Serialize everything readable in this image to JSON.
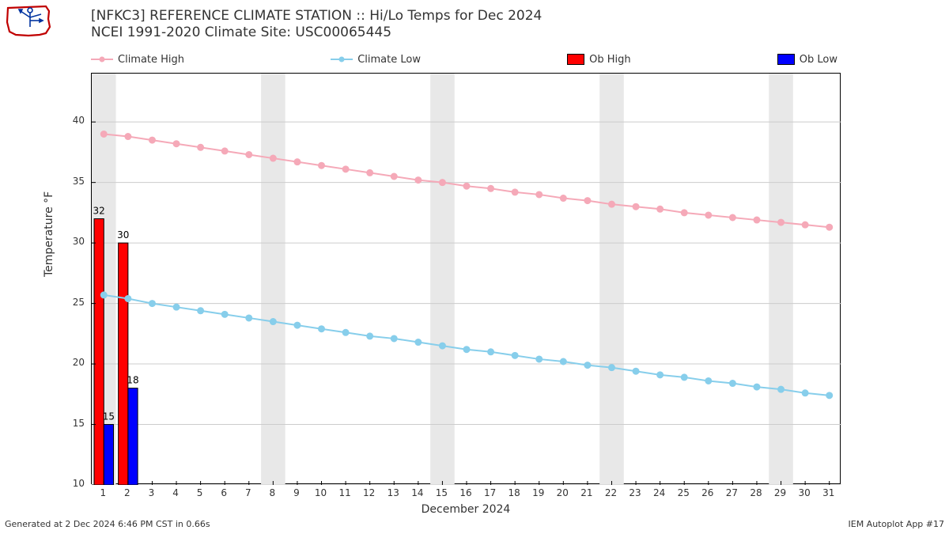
{
  "title_line1": "[NFKC3] REFERENCE CLIMATE STATION :: Hi/Lo Temps for Dec 2024",
  "title_line2": "NCEI 1991-2020 Climate Site: USC00065445",
  "legend": {
    "climate_high": "Climate High",
    "climate_low": "Climate Low",
    "ob_high": "Ob High",
    "ob_low": "Ob Low"
  },
  "xlabel": "December 2024",
  "ylabel": "Temperature °F",
  "footer_left": "Generated at 2 Dec 2024 6:46 PM CST in 0.66s",
  "footer_right": "IEM Autoplot App #17",
  "chart": {
    "type": "line+bar",
    "background_color": "#ffffff",
    "grid_color": "#cccccc",
    "weekend_band_color": "#e8e8e8",
    "border_color": "#000000",
    "xlim": [
      0.5,
      31.5
    ],
    "ylim": [
      10,
      44
    ],
    "yticks": [
      10,
      15,
      20,
      25,
      30,
      35,
      40
    ],
    "xticks": [
      1,
      2,
      3,
      4,
      5,
      6,
      7,
      8,
      9,
      10,
      11,
      12,
      13,
      14,
      15,
      16,
      17,
      18,
      19,
      20,
      21,
      22,
      23,
      24,
      25,
      26,
      27,
      28,
      29,
      30,
      31
    ],
    "weekend_bands": [
      [
        0.5,
        1.5
      ],
      [
        7.5,
        8.5
      ],
      [
        14.5,
        15.5
      ],
      [
        21.5,
        22.5
      ],
      [
        28.5,
        29.5
      ]
    ],
    "climate_high": {
      "color": "#f5a9b8",
      "marker_color": "#f5a9b8",
      "line_width": 2,
      "marker_radius": 4,
      "values": [
        39.0,
        38.8,
        38.5,
        38.2,
        37.9,
        37.6,
        37.3,
        37.0,
        36.7,
        36.4,
        36.1,
        35.8,
        35.5,
        35.2,
        35.0,
        34.7,
        34.5,
        34.2,
        34.0,
        33.7,
        33.5,
        33.2,
        33.0,
        32.8,
        32.5,
        32.3,
        32.1,
        31.9,
        31.7,
        31.5,
        31.3
      ]
    },
    "climate_low": {
      "color": "#87ceeb",
      "marker_color": "#87ceeb",
      "line_width": 2,
      "marker_radius": 4,
      "values": [
        25.7,
        25.4,
        25.0,
        24.7,
        24.4,
        24.1,
        23.8,
        23.5,
        23.2,
        22.9,
        22.6,
        22.3,
        22.1,
        21.8,
        21.5,
        21.2,
        21.0,
        20.7,
        20.4,
        20.2,
        19.9,
        19.7,
        19.4,
        19.1,
        18.9,
        18.6,
        18.4,
        18.1,
        17.9,
        17.6,
        17.4
      ]
    },
    "ob_high": {
      "color": "#ff0000",
      "border": "#000000",
      "bar_width": 0.4,
      "values": {
        "1": 32,
        "2": 30
      }
    },
    "ob_low": {
      "color": "#0000ff",
      "border": "#000000",
      "bar_width": 0.4,
      "values": {
        "1": 15,
        "2": 18
      }
    },
    "label_fontsize": 12,
    "tick_fontsize": 12,
    "title_fontsize": 17
  }
}
